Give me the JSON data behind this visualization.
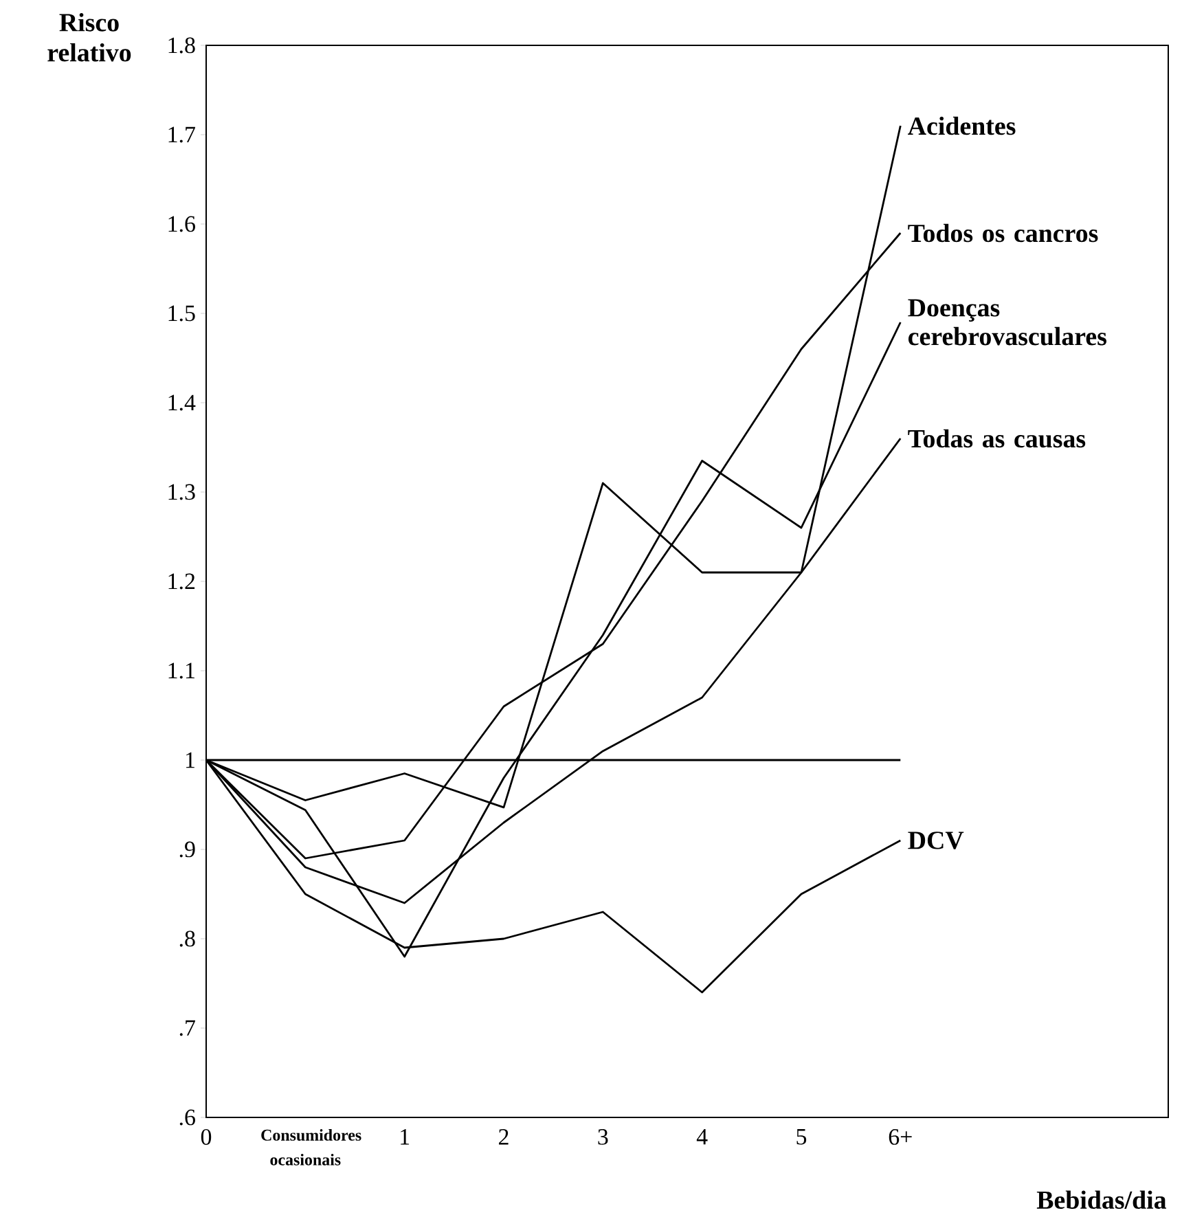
{
  "chart_data": {
    "type": "line",
    "xlabel": "Bebidas/dia",
    "ylabel": "Risco relativo",
    "categories": [
      "0",
      "Consumidores ocasionais",
      "1",
      "2",
      "3",
      "4",
      "5",
      "6+"
    ],
    "ylim": [
      0.6,
      1.8
    ],
    "yticks": [
      {
        "value": 0.6,
        "label": ".6"
      },
      {
        "value": 0.7,
        "label": ".7"
      },
      {
        "value": 0.8,
        "label": ".8"
      },
      {
        "value": 0.9,
        "label": ".9"
      },
      1,
      1.1,
      1.2,
      1.3,
      1.4,
      1.5,
      1.6,
      1.7,
      1.8
    ],
    "grid": false,
    "line_style": "solid",
    "series": [
      {
        "name": "Acidentes",
        "color": "#000000",
        "values": [
          1.0,
          0.955,
          0.985,
          0.947,
          1.31,
          1.21,
          1.21,
          1.71
        ]
      },
      {
        "name": "Todos os cancros",
        "color": "#000000",
        "values": [
          1.0,
          0.89,
          0.91,
          1.06,
          1.13,
          1.29,
          1.46,
          1.59
        ]
      },
      {
        "name": "Doenças cerebrovasculares",
        "color": "#000000",
        "values": [
          1.0,
          0.944,
          0.78,
          0.98,
          1.14,
          1.335,
          1.26,
          1.49
        ]
      },
      {
        "name": "Todas as causas",
        "color": "#000000",
        "values": [
          1.0,
          0.88,
          0.84,
          0.93,
          1.01,
          1.07,
          1.21,
          1.36
        ]
      },
      {
        "name": "DCV",
        "color": "#000000",
        "values": [
          1.0,
          0.85,
          0.79,
          0.8,
          0.83,
          0.74,
          0.85,
          0.91
        ]
      },
      {
        "color": "#000000",
        "values": [
          1.0,
          1.0,
          1.0,
          1.0,
          1.0,
          1.0,
          1.0,
          1.0
        ]
      }
    ]
  }
}
